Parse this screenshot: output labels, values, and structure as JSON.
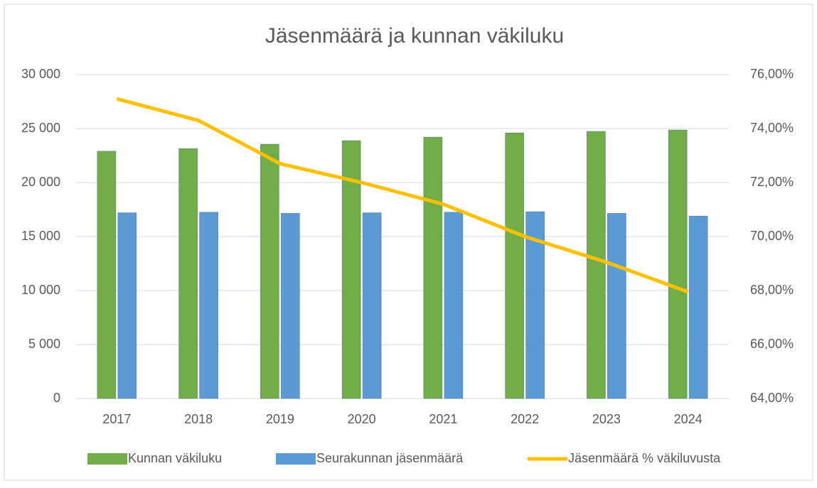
{
  "chart_data": {
    "type": "bar_line",
    "title": "Jäsenmäärä ja kunnan väkiluku",
    "categories": [
      "2017",
      "2018",
      "2019",
      "2020",
      "2021",
      "2022",
      "2023",
      "2024"
    ],
    "series": [
      {
        "name": "Kunnan väkiluku",
        "color": "#70ad47",
        "type": "bar",
        "values": [
          22900,
          23150,
          23550,
          23880,
          24210,
          24600,
          24740,
          24870
        ]
      },
      {
        "name": "Seurakunnan jäsenmäärä",
        "color": "#5b9bd5",
        "type": "bar",
        "values": [
          17200,
          17250,
          17150,
          17200,
          17250,
          17300,
          17150,
          16900
        ]
      },
      {
        "name": "Jäsenmäärä % väkiluvusta",
        "color": "#ffc000",
        "type": "line",
        "axis": "y2",
        "values": [
          75.1,
          74.3,
          72.7,
          72.0,
          71.2,
          70.0,
          69.05,
          67.95
        ]
      }
    ],
    "ylim": [
      0,
      30000
    ],
    "yticks": [
      0,
      {
        "value": 5000,
        "label": "5 000"
      },
      {
        "value": 10000,
        "label": "10 000"
      },
      {
        "value": 15000,
        "label": "15 000"
      },
      {
        "value": 20000,
        "label": "20 000"
      },
      {
        "value": 25000,
        "label": "25 000"
      },
      {
        "value": 30000,
        "label": "30 000"
      }
    ],
    "y2lim": [
      64,
      76
    ],
    "y2ticks": [
      {
        "value": 64,
        "label": "64,00%"
      },
      {
        "value": 66,
        "label": "66,00%"
      },
      {
        "value": 68,
        "label": "68,00%"
      },
      {
        "value": 70,
        "label": "70,00%"
      },
      {
        "value": 72,
        "label": "72,00%"
      },
      {
        "value": 74,
        "label": "74,00%"
      },
      {
        "value": 76,
        "label": "76,00%"
      }
    ],
    "grid": true,
    "legend": "bottom"
  }
}
